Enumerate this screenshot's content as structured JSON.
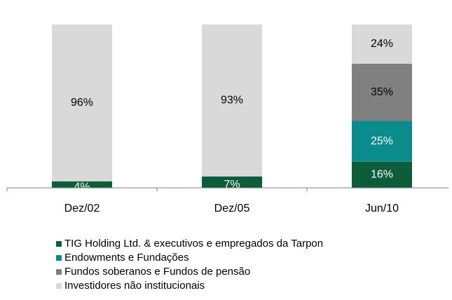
{
  "chart_data": {
    "type": "stacked_bar",
    "categories": [
      "Dez/02",
      "Dez/05",
      "Jun/10"
    ],
    "ylim": [
      0,
      100
    ],
    "series": [
      {
        "name": "TIG Holding Ltd. & executivos e empregados da Tarpon",
        "color": "#0d5c3a",
        "label_color": "#ffffff",
        "values": [
          4,
          7,
          16
        ],
        "value_labels": [
          "4%",
          "7%",
          "16%"
        ]
      },
      {
        "name": "Endowments e Fundações",
        "color": "#0b8c8c",
        "label_color": "#ffffff",
        "values": [
          null,
          null,
          25
        ],
        "value_labels": [
          null,
          null,
          "25%"
        ]
      },
      {
        "name": "Fundos soberanos e Fundos de pensão",
        "color": "#808080",
        "label_color": "#000000",
        "values": [
          null,
          null,
          35
        ],
        "value_labels": [
          null,
          null,
          "35%"
        ]
      },
      {
        "name": "Investidores não institucionais",
        "color": "#d9d9d9",
        "label_color": "#000000",
        "values": [
          96,
          93,
          24
        ],
        "value_labels": [
          "96%",
          "93%",
          "24%"
        ]
      }
    ]
  }
}
